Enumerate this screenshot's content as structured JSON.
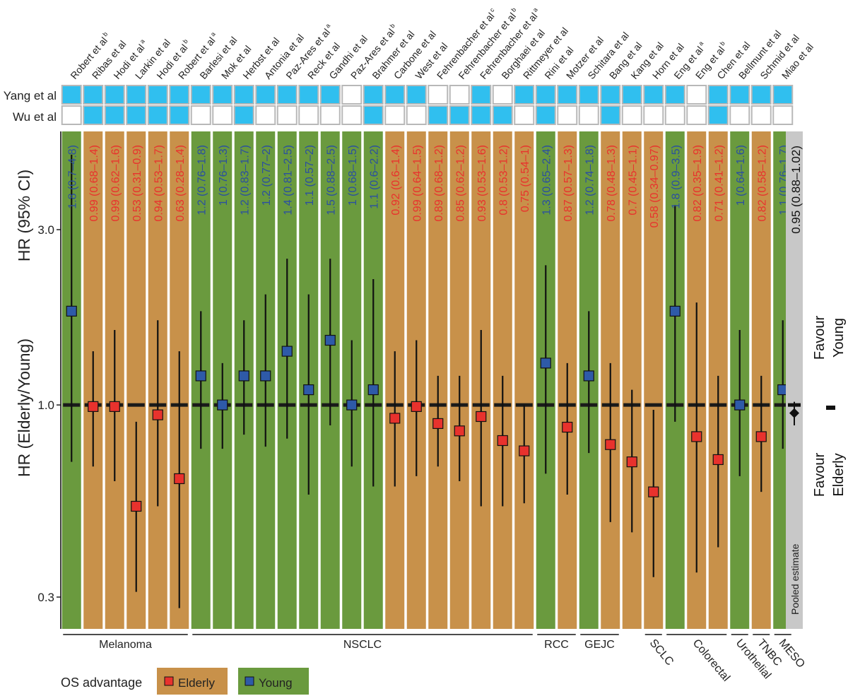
{
  "chart_data": {
    "type": "forest",
    "ylabel_outer": "HR (Elderly/Young)",
    "ylabel_inner": "HR (95% CI)",
    "y_scale": "log",
    "ylim": [
      0.26,
      5.0
    ],
    "yticks": [
      {
        "value": 0.3,
        "label": "0.3"
      },
      {
        "value": 1.0,
        "label": "1.0"
      },
      {
        "value": 3.0,
        "label": "3.0"
      }
    ],
    "row_labels": {
      "yang": "Yang et al",
      "wu": "Wu et al"
    },
    "studies": [
      {
        "name": "Robert et al",
        "sup": "b",
        "hr": 1.8,
        "lo": 0.7,
        "hi": 4.8,
        "label": "1.8 (0.7–4.8)",
        "adv": "young",
        "yang": true,
        "wu": false
      },
      {
        "name": "Ribas et al",
        "sup": "",
        "hr": 0.99,
        "lo": 0.68,
        "hi": 1.4,
        "label": "0.99 (0.68–1.4)",
        "adv": "elderly",
        "yang": true,
        "wu": true
      },
      {
        "name": "Hodi et al",
        "sup": "a",
        "hr": 0.99,
        "lo": 0.62,
        "hi": 1.6,
        "label": "0.99 (0.62–1.6)",
        "adv": "elderly",
        "yang": true,
        "wu": true
      },
      {
        "name": "Larkin et al",
        "sup": "",
        "hr": 0.53,
        "lo": 0.31,
        "hi": 0.9,
        "label": "0.53 (0.31–0.9)",
        "adv": "elderly",
        "yang": true,
        "wu": true
      },
      {
        "name": "Hodi et al",
        "sup": "b",
        "hr": 0.94,
        "lo": 0.53,
        "hi": 1.7,
        "label": "0.94 (0.53–1.7)",
        "adv": "elderly",
        "yang": true,
        "wu": true
      },
      {
        "name": "Robert et al",
        "sup": "a",
        "hr": 0.63,
        "lo": 0.28,
        "hi": 1.4,
        "label": "0.63 (0.28–1.4)",
        "adv": "elderly",
        "yang": true,
        "wu": true
      },
      {
        "name": "Barlesi et al",
        "sup": "",
        "hr": 1.2,
        "lo": 0.76,
        "hi": 1.8,
        "label": "1.2 (0.76–1.8)",
        "adv": "young",
        "yang": true,
        "wu": false
      },
      {
        "name": "Mok et al",
        "sup": "",
        "hr": 1.0,
        "lo": 0.76,
        "hi": 1.3,
        "label": "1 (0.76–1.3)",
        "adv": "young",
        "yang": true,
        "wu": false
      },
      {
        "name": "Herbst et al",
        "sup": "",
        "hr": 1.2,
        "lo": 0.83,
        "hi": 1.7,
        "label": "1.2 (0.83–1.7)",
        "adv": "young",
        "yang": true,
        "wu": true
      },
      {
        "name": "Antonia et al",
        "sup": "",
        "hr": 1.2,
        "lo": 0.77,
        "hi": 2.0,
        "label": "1.2 (0.77–2)",
        "adv": "young",
        "yang": true,
        "wu": false
      },
      {
        "name": "Paz-Ares et al",
        "sup": "a",
        "hr": 1.4,
        "lo": 0.81,
        "hi": 2.5,
        "label": "1.4 (0.81–2.5)",
        "adv": "young",
        "yang": true,
        "wu": false
      },
      {
        "name": "Reck et al",
        "sup": "",
        "hr": 1.1,
        "lo": 0.57,
        "hi": 2.0,
        "label": "1.1 (0.57–2)",
        "adv": "young",
        "yang": true,
        "wu": false
      },
      {
        "name": "Gandhi et al",
        "sup": "",
        "hr": 1.5,
        "lo": 0.88,
        "hi": 2.5,
        "label": "1.5 (0.88–2.5)",
        "adv": "young",
        "yang": true,
        "wu": false
      },
      {
        "name": "Paz-Ares et al",
        "sup": "b",
        "hr": 1.0,
        "lo": 0.68,
        "hi": 1.5,
        "label": "1 (0.68–1.5)",
        "adv": "young",
        "yang": false,
        "wu": false
      },
      {
        "name": "Brahmer et al",
        "sup": "",
        "hr": 1.1,
        "lo": 0.6,
        "hi": 2.2,
        "label": "1.1 (0.6–2.2)",
        "adv": "young",
        "yang": true,
        "wu": true
      },
      {
        "name": "Carbone et al",
        "sup": "",
        "hr": 0.92,
        "lo": 0.6,
        "hi": 1.4,
        "label": "0.92 (0.6–1.4)",
        "adv": "elderly",
        "yang": true,
        "wu": false
      },
      {
        "name": "West et al",
        "sup": "",
        "hr": 0.99,
        "lo": 0.64,
        "hi": 1.5,
        "label": "0.99 (0.64–1.5)",
        "adv": "elderly",
        "yang": true,
        "wu": false
      },
      {
        "name": "Fehrenbacher et al",
        "sup": "c",
        "hr": 0.89,
        "lo": 0.68,
        "hi": 1.2,
        "label": "0.89 (0.68–1.2)",
        "adv": "elderly",
        "yang": false,
        "wu": true
      },
      {
        "name": "Fehrenbacher et al",
        "sup": "b",
        "hr": 0.85,
        "lo": 0.62,
        "hi": 1.2,
        "label": "0.85 (0.62–1.2)",
        "adv": "elderly",
        "yang": false,
        "wu": true
      },
      {
        "name": "Fehrenbacher et al",
        "sup": "a",
        "hr": 0.93,
        "lo": 0.53,
        "hi": 1.6,
        "label": "0.93 (0.53–1.6)",
        "adv": "elderly",
        "yang": true,
        "wu": true
      },
      {
        "name": "Borghaei et al",
        "sup": "",
        "hr": 0.8,
        "lo": 0.53,
        "hi": 1.2,
        "label": "0.8 (0.53–1.2)",
        "adv": "elderly",
        "yang": false,
        "wu": true
      },
      {
        "name": "Rittmeyer et al",
        "sup": "",
        "hr": 0.75,
        "lo": 0.54,
        "hi": 1.0,
        "label": "0.75 (0.54–1)",
        "adv": "elderly",
        "yang": true,
        "wu": false
      },
      {
        "name": "Rini et al",
        "sup": "",
        "hr": 1.3,
        "lo": 0.65,
        "hi": 2.4,
        "label": "1.3 (0.65–2.4)",
        "adv": "young",
        "yang": true,
        "wu": true
      },
      {
        "name": "Motzer et al",
        "sup": "",
        "hr": 0.87,
        "lo": 0.57,
        "hi": 1.3,
        "label": "0.87 (0.57–1.3)",
        "adv": "elderly",
        "yang": true,
        "wu": false
      },
      {
        "name": "Schitara et al",
        "sup": "",
        "hr": 1.2,
        "lo": 0.74,
        "hi": 1.8,
        "label": "1.2 (0.74–1.8)",
        "adv": "young",
        "yang": true,
        "wu": false
      },
      {
        "name": "Bang et al",
        "sup": "",
        "hr": 0.78,
        "lo": 0.48,
        "hi": 1.3,
        "label": "0.78 (0.48–1.3)",
        "adv": "elderly",
        "yang": true,
        "wu": true
      },
      {
        "name": "Kang et al",
        "sup": "",
        "hr": 0.7,
        "lo": 0.45,
        "hi": 1.1,
        "label": "0.7 (0.45–1.1)",
        "adv": "elderly",
        "yang": true,
        "wu": false
      },
      {
        "name": "Horn et al",
        "sup": "",
        "hr": 0.58,
        "lo": 0.34,
        "hi": 0.97,
        "label": "0.58 (0.34–0.97)",
        "adv": "elderly",
        "yang": true,
        "wu": false
      },
      {
        "name": "Eng et al",
        "sup": "a",
        "hr": 1.8,
        "lo": 0.9,
        "hi": 3.5,
        "label": "1.8 (0.9–3.5)",
        "adv": "young",
        "yang": true,
        "wu": false
      },
      {
        "name": "Eng et al",
        "sup": "b",
        "hr": 0.82,
        "lo": 0.35,
        "hi": 1.9,
        "label": "0.82 (0.35–1.9)",
        "adv": "elderly",
        "yang": false,
        "wu": false
      },
      {
        "name": "Chen et al",
        "sup": "",
        "hr": 0.71,
        "lo": 0.41,
        "hi": 1.2,
        "label": "0.71 (0.41–1.2)",
        "adv": "elderly",
        "yang": true,
        "wu": true
      },
      {
        "name": "Bellmunt et al",
        "sup": "",
        "hr": 1.0,
        "lo": 0.64,
        "hi": 1.6,
        "label": "1 (0.64–1.6)",
        "adv": "young",
        "yang": true,
        "wu": false
      },
      {
        "name": "Schmid et al",
        "sup": "",
        "hr": 0.82,
        "lo": 0.58,
        "hi": 1.2,
        "label": "0.82 (0.58–1.2)",
        "adv": "elderly",
        "yang": true,
        "wu": false
      },
      {
        "name": "Miao et al",
        "sup": "",
        "hr": 1.1,
        "lo": 0.76,
        "hi": 1.7,
        "label": "1.1 (0.76–1.7)",
        "adv": "young",
        "yang": true,
        "wu": false
      }
    ],
    "groups": [
      {
        "name": "Melanoma",
        "from": 0,
        "to": 5,
        "rotate": false
      },
      {
        "name": "NSCLC",
        "from": 6,
        "to": 21,
        "rotate": false
      },
      {
        "name": "RCC",
        "from": 22,
        "to": 23,
        "rotate": false
      },
      {
        "name": "GEJC",
        "from": 24,
        "to": 25,
        "rotate": false
      },
      {
        "name": "SCLC",
        "from": 27,
        "to": 27,
        "rotate": true
      },
      {
        "name": "Colorectal",
        "from": 28,
        "to": 30,
        "rotate": true
      },
      {
        "name": "Urothelial",
        "from": 31,
        "to": 31,
        "rotate": true
      },
      {
        "name": "TNBC",
        "from": 32,
        "to": 32,
        "rotate": true
      },
      {
        "name": "MESO",
        "from": 33,
        "to": 33,
        "rotate": true
      }
    ],
    "pooled": {
      "hr": 0.95,
      "lo": 0.88,
      "hi": 1.02,
      "label": "0.95 (0.88–1.02)",
      "panel_label": "Pooled estimate"
    },
    "favour": {
      "young_1": "Favour",
      "young_2": "Young",
      "elderly_1": "Favour",
      "elderly_2": "Elderly"
    },
    "legend": {
      "title": "OS advantage",
      "elderly": "Elderly",
      "young": "Young"
    },
    "colors": {
      "elderly_bg": "#c8914a",
      "young_bg": "#6a9a3e",
      "elderly_marker": "#e8322d",
      "young_marker": "#2e5aa8",
      "elderly_text": "#e8322d",
      "young_text": "#2a4fa0",
      "cell_blue": "#30bfef",
      "pooled_bg": "#c8c8c8"
    }
  }
}
